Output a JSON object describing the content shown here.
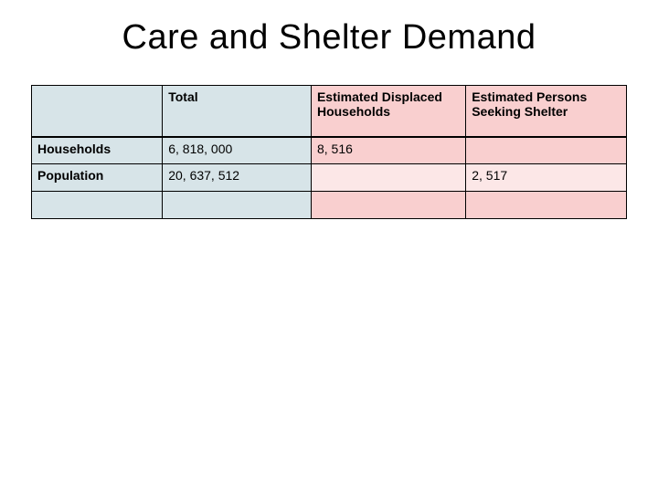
{
  "title": "Care and Shelter Demand",
  "table": {
    "columns": [
      {
        "label": "",
        "width_pct": 22,
        "header_bg": "#d7e4e8"
      },
      {
        "label": "Total",
        "width_pct": 25,
        "header_bg": "#d7e4e8"
      },
      {
        "label": "Estimated Displaced Households",
        "width_pct": 26,
        "header_bg": "#f9cfcf"
      },
      {
        "label": "Estimated Persons Seeking Shelter",
        "width_pct": 27,
        "header_bg": "#f9cfcf"
      }
    ],
    "rows": [
      {
        "label": "Households",
        "cells": [
          {
            "value": "6, 818, 000",
            "bg": "#d7e4e8"
          },
          {
            "value": "8, 516",
            "bg": "#f9cfcf"
          },
          {
            "value": "",
            "bg": "#f9cfcf"
          }
        ]
      },
      {
        "label": "Population",
        "cells": [
          {
            "value": "20, 637, 512",
            "bg": "#d7e4e8"
          },
          {
            "value": "",
            "bg": "#fce7e7"
          },
          {
            "value": "2, 517",
            "bg": "#fce7e7"
          }
        ]
      },
      {
        "label": "",
        "cells": [
          {
            "value": "",
            "bg": "#d7e4e8"
          },
          {
            "value": "",
            "bg": "#f9cfcf"
          },
          {
            "value": "",
            "bg": "#f9cfcf"
          }
        ]
      }
    ],
    "colors": {
      "blue": "#d7e4e8",
      "pink_dark": "#f9cfcf",
      "pink_light": "#fce7e7",
      "border": "#000000",
      "background": "#ffffff",
      "text": "#000000"
    },
    "title_fontsize": 38,
    "cell_fontsize": 14
  }
}
